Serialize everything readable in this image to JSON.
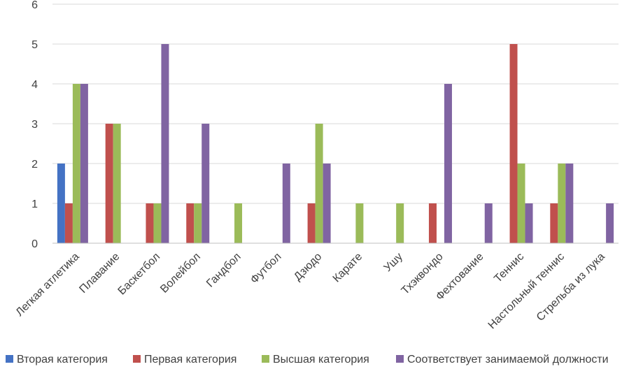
{
  "chart_data": {
    "type": "bar",
    "title": "",
    "xlabel": "",
    "ylabel": "",
    "ylim": [
      0,
      6
    ],
    "yticks": [
      0,
      1,
      2,
      3,
      4,
      5,
      6
    ],
    "grid": true,
    "legend_position": "bottom",
    "categories": [
      "Легкая атлетика",
      "Плавание",
      "Баскетбол",
      "Волейбол",
      "Гандбол",
      "Футбол",
      "Дзюдо",
      "Карате",
      "Ушу",
      "Тхэквондо",
      "Фехтование",
      "Теннис",
      "Настольный теннис",
      "Стрельба из лука"
    ],
    "series": [
      {
        "name": "Вторая категория",
        "color": "#4472c4",
        "values": [
          2,
          0,
          0,
          0,
          0,
          0,
          0,
          0,
          0,
          0,
          0,
          0,
          0,
          0
        ]
      },
      {
        "name": "Первая категория",
        "color": "#c0504d",
        "values": [
          1,
          3,
          1,
          1,
          0,
          0,
          1,
          0,
          0,
          1,
          0,
          5,
          1,
          0
        ]
      },
      {
        "name": "Высшая категория",
        "color": "#9bbb59",
        "values": [
          4,
          3,
          1,
          1,
          1,
          0,
          3,
          1,
          1,
          0,
          0,
          2,
          2,
          0
        ]
      },
      {
        "name": "Соответствует занимаемой должности",
        "color": "#8064a2",
        "values": [
          4,
          0,
          5,
          3,
          0,
          2,
          2,
          0,
          0,
          4,
          1,
          1,
          2,
          1
        ]
      }
    ]
  }
}
